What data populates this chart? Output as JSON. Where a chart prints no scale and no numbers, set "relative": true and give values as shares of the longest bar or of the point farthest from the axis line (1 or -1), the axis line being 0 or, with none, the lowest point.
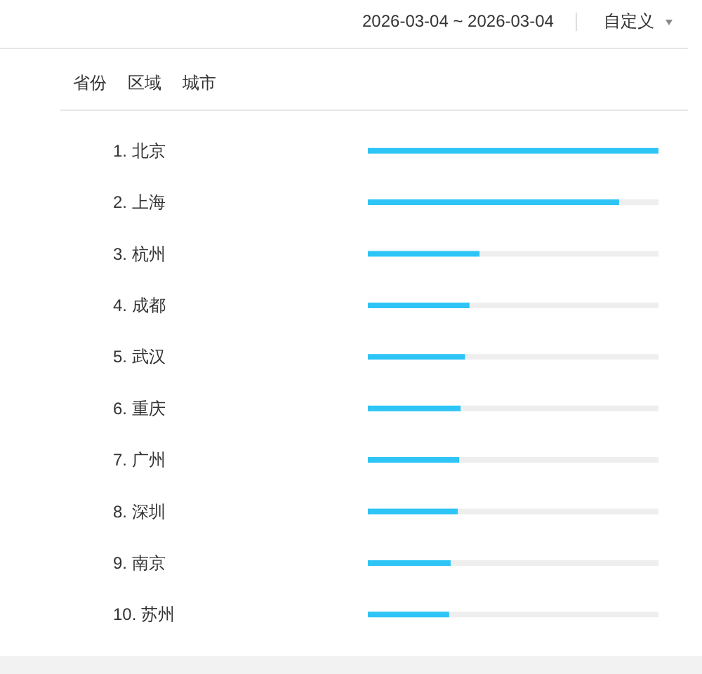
{
  "chart_data": {
    "type": "bar",
    "orientation": "horizontal",
    "relative": true,
    "stacked": true,
    "categories": [
      "1. 北京",
      "2. 上海",
      "3. 杭州",
      "4. 成都",
      "5. 武汉",
      "6. 重庆",
      "7. 广州",
      "8. 深圳",
      "9. 南京",
      "10. 苏州"
    ],
    "series": [
      {
        "color": "#2ec5f6",
        "values": [
          1,
          0.865,
          0.385,
          0.35,
          0.335,
          0.32,
          0.315,
          0.31,
          0.285,
          0.28
        ]
      },
      {
        "color": "#eeeeee",
        "values": [
          0,
          0.135,
          0.615,
          0.65,
          0.665,
          0.68,
          0.685,
          0.69,
          0.715,
          0.72
        ]
      }
    ],
    "annotations": [
      "2026-03-04 ~ 2026-03-04",
      "自定义",
      "省份",
      "区域",
      "城市"
    ]
  }
}
